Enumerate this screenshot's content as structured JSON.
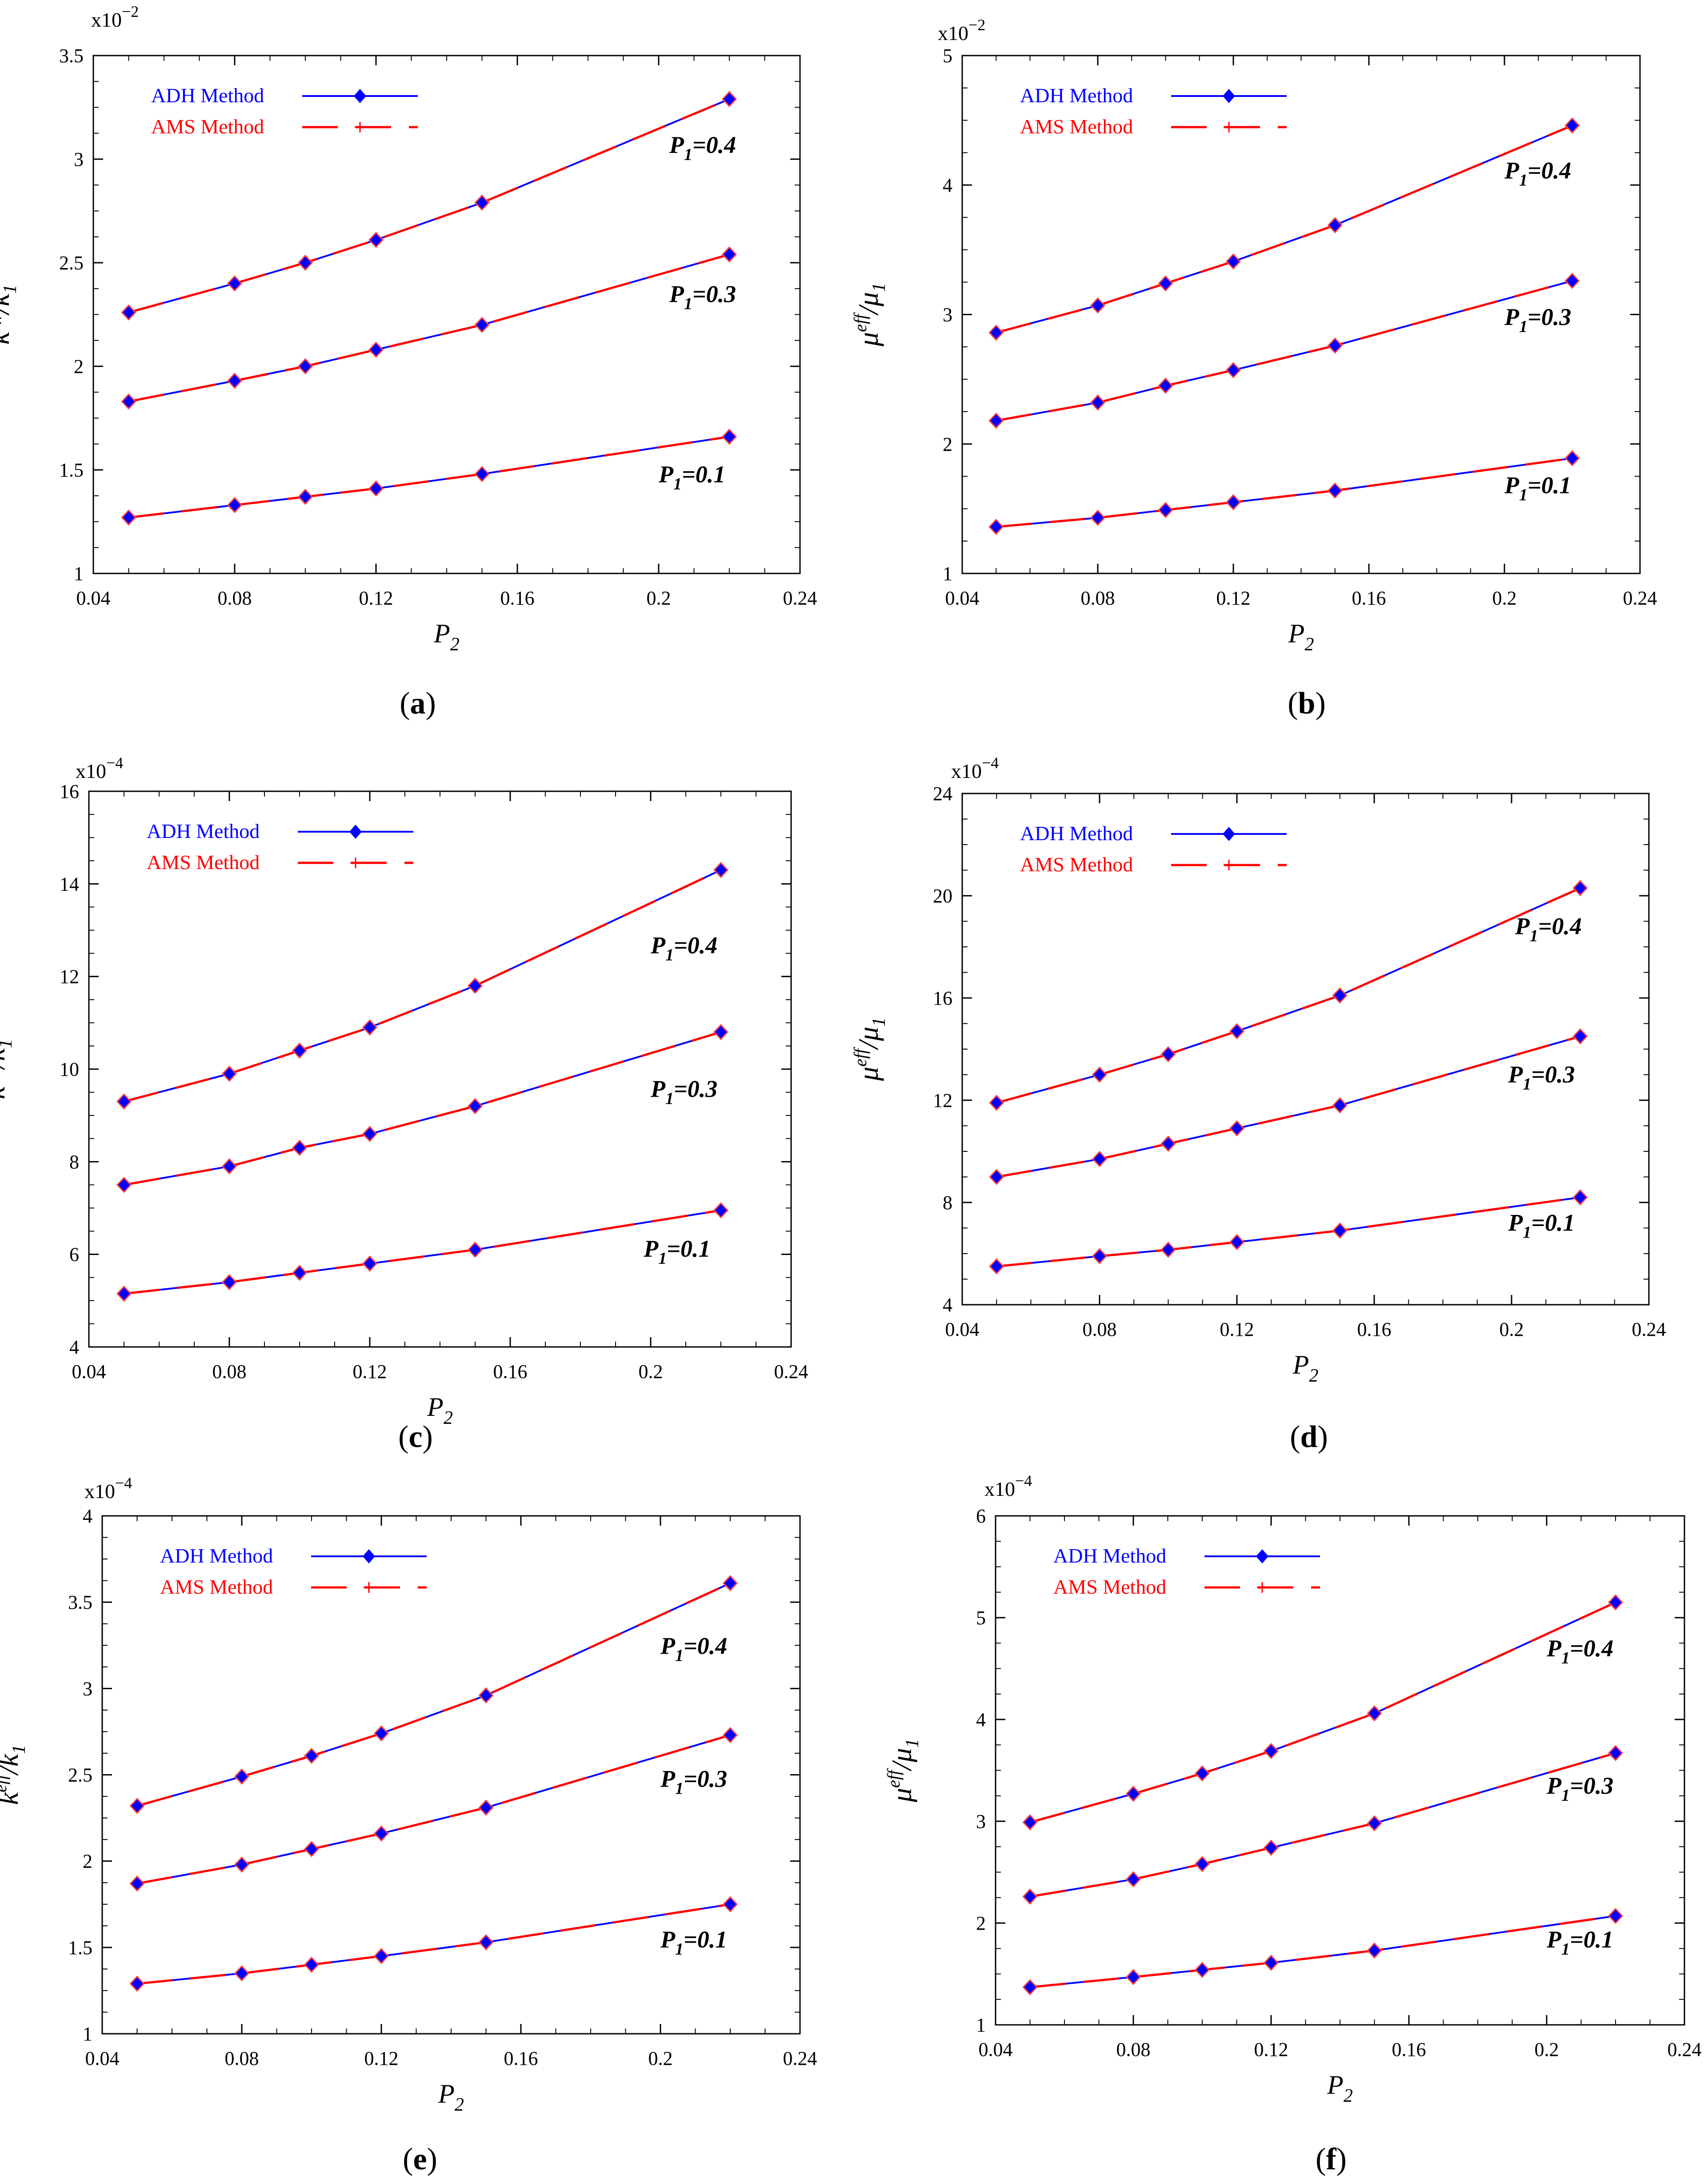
{
  "colors": {
    "adh": "#0000ff",
    "ams": "#ff0000",
    "marker_fill": "#0000ff",
    "marker_stroke": "#ff4040",
    "axis": "#000000"
  },
  "chart_data": [
    {
      "panel": "a",
      "caption": "(a)",
      "type": "line",
      "xlabel": "P",
      "xlabel_sub": "2",
      "ylabel_main": "k",
      "ylabel_sup": "eff",
      "ylabel_den": "/k",
      "ylabel_sub": "1",
      "multiplier": {
        "base": "x10",
        "exp": "−2"
      },
      "xlim": [
        0.04,
        0.24
      ],
      "xticks": [
        0.04,
        0.08,
        0.12,
        0.16,
        0.2,
        0.24
      ],
      "xtick_labels": [
        "0.04",
        "0.08",
        "0.12",
        "0.16",
        "0.2",
        "0.24"
      ],
      "ylim": [
        1,
        3.5
      ],
      "yticks": [
        1,
        1.5,
        2,
        2.5,
        3,
        3.5
      ],
      "ytick_labels": [
        "1",
        "1.5",
        "2",
        "2.5",
        "3",
        "3.5"
      ],
      "legend": [
        "ADH Method",
        "AMS Method"
      ],
      "x": [
        0.05,
        0.08,
        0.1,
        0.12,
        0.15,
        0.22
      ],
      "series": [
        {
          "label": "P",
          "label_sub": "1",
          "label_val": "=0.4",
          "label_at": [
            0.203,
            3.03
          ],
          "values": [
            2.26,
            2.4,
            2.5,
            2.61,
            2.79,
            3.29
          ]
        },
        {
          "label": "P",
          "label_sub": "1",
          "label_val": "=0.3",
          "label_at": [
            0.203,
            2.31
          ],
          "values": [
            1.83,
            1.93,
            2.0,
            2.08,
            2.2,
            2.54
          ]
        },
        {
          "label": "P",
          "label_sub": "1",
          "label_val": "=0.1",
          "label_at": [
            0.2,
            1.44
          ],
          "values": [
            1.27,
            1.33,
            1.37,
            1.41,
            1.48,
            1.66
          ]
        }
      ]
    },
    {
      "panel": "b",
      "caption": "(b)",
      "type": "line",
      "xlabel": "P",
      "xlabel_sub": "2",
      "ylabel_main": "μ",
      "ylabel_sup": "eff",
      "ylabel_den": "/μ",
      "ylabel_sub": "1",
      "multiplier": {
        "base": "x10",
        "exp": "−2"
      },
      "xlim": [
        0.04,
        0.24
      ],
      "xticks": [
        0.04,
        0.08,
        0.12,
        0.16,
        0.2,
        0.24
      ],
      "xtick_labels": [
        "0.04",
        "0.08",
        "0.12",
        "0.16",
        "0.2",
        "0.24"
      ],
      "ylim": [
        1,
        5
      ],
      "yticks": [
        1,
        2,
        3,
        4,
        5
      ],
      "ytick_labels": [
        "1",
        "2",
        "3",
        "4",
        "5"
      ],
      "legend": [
        "ADH Method",
        "AMS Method"
      ],
      "x": [
        0.05,
        0.08,
        0.1,
        0.12,
        0.15,
        0.22
      ],
      "series": [
        {
          "label": "P",
          "label_sub": "1",
          "label_val": "=0.4",
          "label_at": [
            0.2,
            4.05
          ],
          "values": [
            2.86,
            3.07,
            3.24,
            3.41,
            3.69,
            4.46
          ]
        },
        {
          "label": "P",
          "label_sub": "1",
          "label_val": "=0.3",
          "label_at": [
            0.2,
            2.92
          ],
          "values": [
            2.18,
            2.32,
            2.45,
            2.57,
            2.76,
            3.26
          ]
        },
        {
          "label": "P",
          "label_sub": "1",
          "label_val": "=0.1",
          "label_at": [
            0.2,
            1.62
          ],
          "values": [
            1.36,
            1.43,
            1.49,
            1.55,
            1.64,
            1.89
          ]
        }
      ]
    },
    {
      "panel": "c",
      "caption": "(c)",
      "type": "line",
      "xlabel": "P",
      "xlabel_sub": "2",
      "ylabel_main": "k",
      "ylabel_sup": "eff",
      "ylabel_den": "/k",
      "ylabel_sub": "1",
      "multiplier": {
        "base": "x10",
        "exp": "−4"
      },
      "xlim": [
        0.04,
        0.24
      ],
      "xticks": [
        0.04,
        0.08,
        0.12,
        0.16,
        0.2,
        0.24
      ],
      "xtick_labels": [
        "0.04",
        "0.08",
        "0.12",
        "0.16",
        "0.2",
        "0.24"
      ],
      "ylim": [
        4,
        16
      ],
      "yticks": [
        4,
        6,
        8,
        10,
        12,
        14,
        16
      ],
      "ytick_labels": [
        "4",
        "6",
        "8",
        "10",
        "12",
        "14",
        "16"
      ],
      "legend": [
        "ADH Method",
        "AMS Method"
      ],
      "x": [
        0.05,
        0.08,
        0.1,
        0.12,
        0.15,
        0.22
      ],
      "series": [
        {
          "label": "P",
          "label_sub": "1",
          "label_val": "=0.4",
          "label_at": [
            0.2,
            12.5
          ],
          "values": [
            9.3,
            9.9,
            10.4,
            10.9,
            11.8,
            14.3
          ]
        },
        {
          "label": "P",
          "label_sub": "1",
          "label_val": "=0.3",
          "label_at": [
            0.2,
            9.4
          ],
          "values": [
            7.5,
            7.9,
            8.3,
            8.6,
            9.2,
            10.8
          ]
        },
        {
          "label": "P",
          "label_sub": "1",
          "label_val": "=0.1",
          "label_at": [
            0.198,
            5.95
          ],
          "values": [
            5.15,
            5.4,
            5.6,
            5.8,
            6.1,
            6.95
          ]
        }
      ]
    },
    {
      "panel": "d",
      "caption": "(d)",
      "type": "line",
      "xlabel": "P",
      "xlabel_sub": "2",
      "ylabel_main": "μ",
      "ylabel_sup": "eff",
      "ylabel_den": "/μ",
      "ylabel_sub": "1",
      "multiplier": {
        "base": "x10",
        "exp": "−4"
      },
      "xlim": [
        0.04,
        0.24
      ],
      "xticks": [
        0.04,
        0.08,
        0.12,
        0.16,
        0.2,
        0.24
      ],
      "xtick_labels": [
        "0.04",
        "0.08",
        "0.12",
        "0.16",
        "0.2",
        "0.24"
      ],
      "ylim": [
        4,
        24
      ],
      "yticks": [
        4,
        8,
        12,
        16,
        20,
        24
      ],
      "ytick_labels": [
        "4",
        "8",
        "12",
        "16",
        "20",
        "24"
      ],
      "legend": [
        "ADH Method",
        "AMS Method"
      ],
      "x": [
        0.05,
        0.08,
        0.1,
        0.12,
        0.15,
        0.22
      ],
      "series": [
        {
          "label": "P",
          "label_sub": "1",
          "label_val": "=0.4",
          "label_at": [
            0.201,
            18.5
          ],
          "values": [
            11.9,
            13.0,
            13.8,
            14.7,
            16.1,
            20.3
          ]
        },
        {
          "label": "P",
          "label_sub": "1",
          "label_val": "=0.3",
          "label_at": [
            0.199,
            12.7
          ],
          "values": [
            9.0,
            9.7,
            10.3,
            10.9,
            11.8,
            14.5
          ]
        },
        {
          "label": "P",
          "label_sub": "1",
          "label_val": "=0.1",
          "label_at": [
            0.199,
            6.9
          ],
          "values": [
            5.5,
            5.9,
            6.15,
            6.45,
            6.9,
            8.2
          ]
        }
      ]
    },
    {
      "panel": "e",
      "caption": "(e)",
      "type": "line",
      "xlabel": "P",
      "xlabel_sub": "2",
      "ylabel_main": "k",
      "ylabel_sup": "eff",
      "ylabel_den": "/k",
      "ylabel_sub": "1",
      "multiplier": {
        "base": "x10",
        "exp": "−4"
      },
      "xlim": [
        0.04,
        0.24
      ],
      "xticks": [
        0.04,
        0.08,
        0.12,
        0.16,
        0.2,
        0.24
      ],
      "xtick_labels": [
        "0.04",
        "0.08",
        "0.12",
        "0.16",
        "0.2",
        "0.24"
      ],
      "ylim": [
        1,
        4
      ],
      "yticks": [
        1,
        1.5,
        2,
        2.5,
        3,
        3.5,
        4
      ],
      "ytick_labels": [
        "1",
        "1.5",
        "2",
        "2.5",
        "3",
        "3.5",
        "4"
      ],
      "legend": [
        "ADH Method",
        "AMS Method"
      ],
      "x": [
        0.05,
        0.08,
        0.1,
        0.12,
        0.15,
        0.22
      ],
      "series": [
        {
          "label": "P",
          "label_sub": "1",
          "label_val": "=0.4",
          "label_at": [
            0.2,
            3.2
          ],
          "values": [
            2.32,
            2.49,
            2.61,
            2.74,
            2.96,
            3.61
          ]
        },
        {
          "label": "P",
          "label_sub": "1",
          "label_val": "=0.3",
          "label_at": [
            0.2,
            2.43
          ],
          "values": [
            1.87,
            1.98,
            2.07,
            2.16,
            2.31,
            2.73
          ]
        },
        {
          "label": "P",
          "label_sub": "1",
          "label_val": "=0.1",
          "label_at": [
            0.2,
            1.5
          ],
          "values": [
            1.29,
            1.35,
            1.4,
            1.45,
            1.53,
            1.75
          ]
        }
      ]
    },
    {
      "panel": "f",
      "caption": "(f)",
      "type": "line",
      "xlabel": "P",
      "xlabel_sub": "2",
      "ylabel_main": "μ",
      "ylabel_sup": "eff",
      "ylabel_den": "/μ",
      "ylabel_sub": "1",
      "multiplier": {
        "base": "x10",
        "exp": "−4"
      },
      "xlim": [
        0.04,
        0.24
      ],
      "xticks": [
        0.04,
        0.08,
        0.12,
        0.16,
        0.2,
        0.24
      ],
      "xtick_labels": [
        "0.04",
        "0.08",
        "0.12",
        "0.16",
        "0.2",
        "0.24"
      ],
      "ylim": [
        1,
        6
      ],
      "yticks": [
        1,
        2,
        3,
        4,
        5,
        6
      ],
      "ytick_labels": [
        "1",
        "2",
        "3",
        "4",
        "5",
        "6"
      ],
      "legend": [
        "ADH Method",
        "AMS Method"
      ],
      "x": [
        0.05,
        0.08,
        0.1,
        0.12,
        0.15,
        0.22
      ],
      "series": [
        {
          "label": "P",
          "label_sub": "1",
          "label_val": "=0.4",
          "label_at": [
            0.2,
            4.62
          ],
          "values": [
            2.99,
            3.27,
            3.47,
            3.69,
            4.06,
            5.15
          ]
        },
        {
          "label": "P",
          "label_sub": "1",
          "label_val": "=0.3",
          "label_at": [
            0.2,
            3.27
          ],
          "values": [
            2.26,
            2.43,
            2.58,
            2.74,
            2.98,
            3.67
          ]
        },
        {
          "label": "P",
          "label_sub": "1",
          "label_val": "=0.1",
          "label_at": [
            0.2,
            1.76
          ],
          "values": [
            1.37,
            1.47,
            1.54,
            1.61,
            1.73,
            2.07
          ]
        }
      ]
    }
  ]
}
